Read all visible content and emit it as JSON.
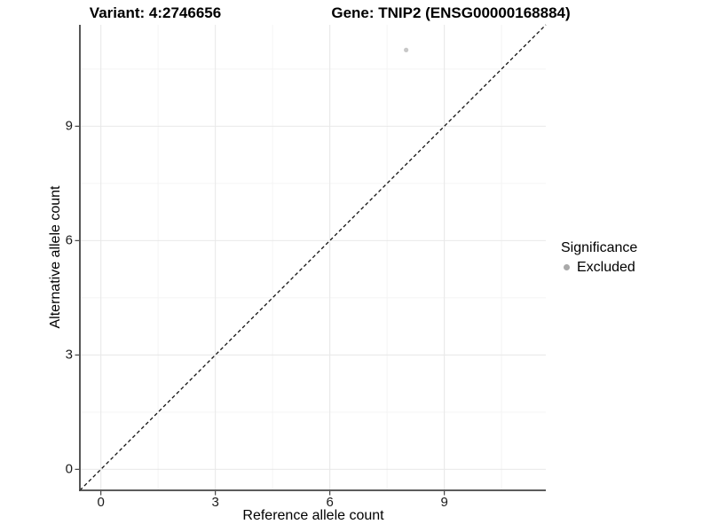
{
  "header": {
    "variant_title": "Variant: 4:2746656",
    "gene_title": "Gene: TNIP2 (ENSG00000168884)"
  },
  "chart_data": {
    "type": "scatter",
    "title": "Variant: 4:2746656  Gene: TNIP2 (ENSG00000168884)",
    "xlabel": "Reference allele count",
    "ylabel": "Alternative allele count",
    "xlim": [
      -0.55,
      11.66
    ],
    "ylim": [
      -0.55,
      11.66
    ],
    "x_ticks": [
      0,
      3,
      6,
      9
    ],
    "y_ticks": [
      0,
      3,
      6,
      9
    ],
    "x_minor_ticks": [
      1.5,
      4.5,
      7.5,
      10.5
    ],
    "y_minor_ticks": [
      1.5,
      4.5,
      7.5,
      10.5
    ],
    "grid": "major-and-minor",
    "identity_line": {
      "style": "dashed",
      "color": "#111111",
      "equation": "y = x"
    },
    "series": [
      {
        "name": "Excluded",
        "color": "#c8c8c8",
        "points": [
          {
            "x": 8,
            "y": 11
          }
        ]
      }
    ],
    "legend": {
      "title": "Significance",
      "position": "right",
      "items": [
        {
          "label": "Excluded",
          "color": "#a9a9a9",
          "marker": "circle"
        }
      ]
    }
  },
  "colors": {
    "background": "#ffffff",
    "axis_line": "#444444",
    "grid_major": "#e9e9e9",
    "grid_minor": "#f4f4f4",
    "tick_text": "#1a1a1a"
  }
}
